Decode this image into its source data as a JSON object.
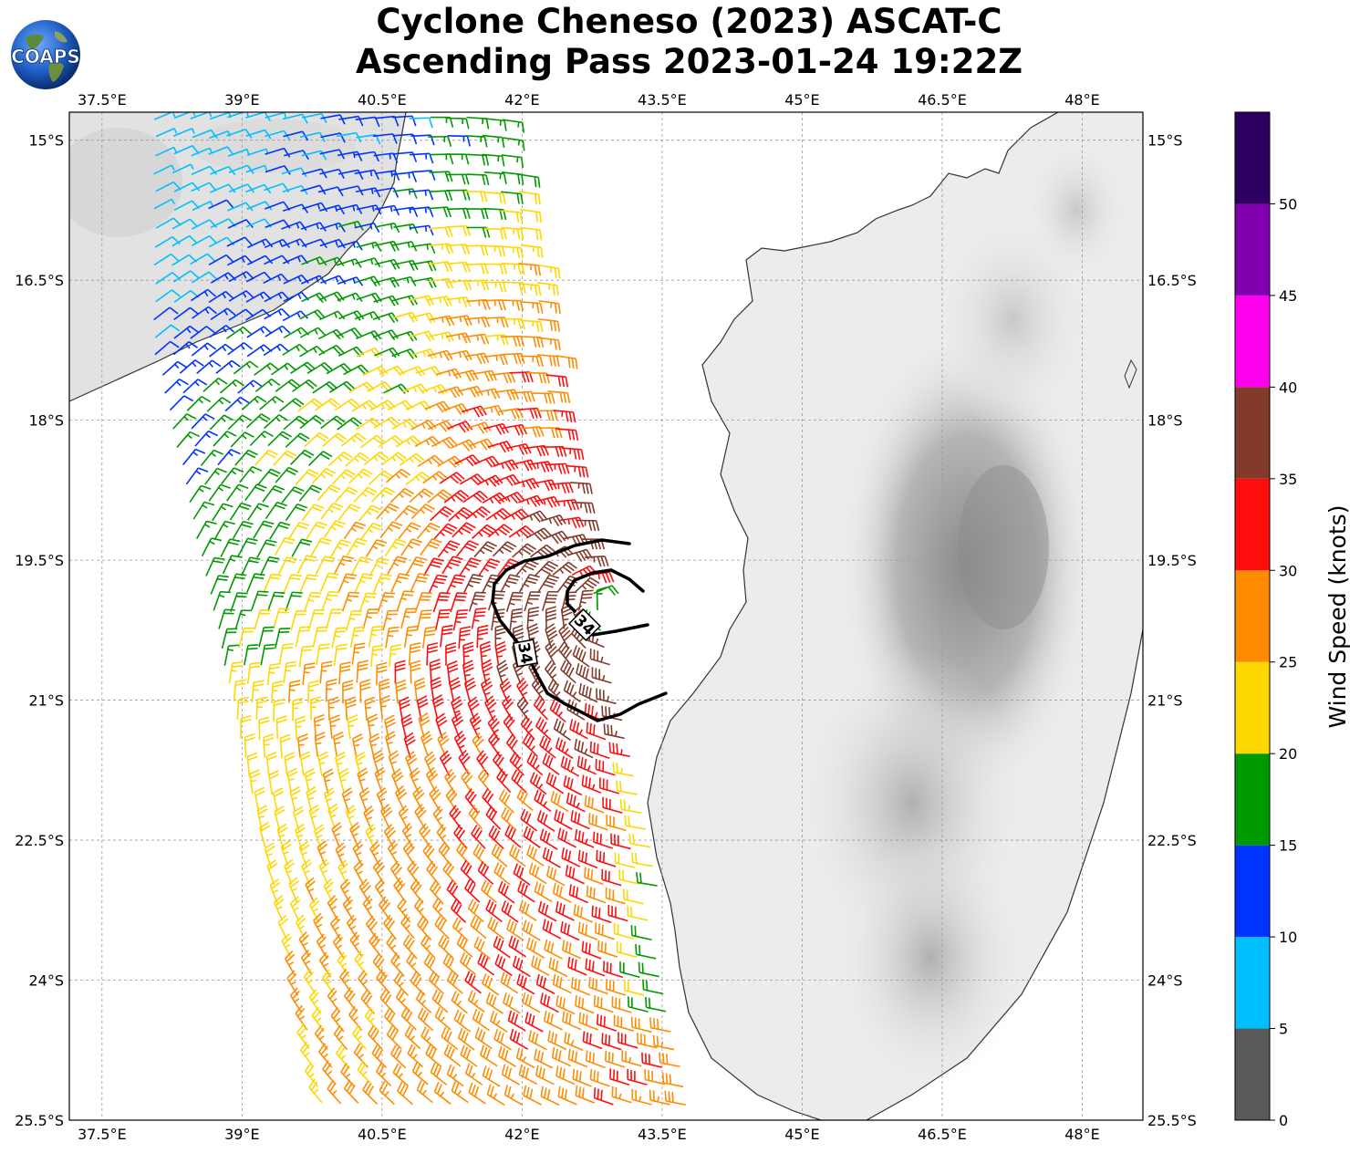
{
  "title": {
    "line1": "Cyclone Cheneso (2023) ASCAT-C",
    "line2": "Ascending Pass 2023-01-24 19:22Z"
  },
  "logo": {
    "text": "COAPS"
  },
  "map": {
    "lon_range": [
      37.15,
      48.65
    ],
    "lat_range": [
      -25.5,
      -14.7
    ],
    "lon_ticks": [
      "37.5°E",
      "39°E",
      "40.5°E",
      "42°E",
      "43.5°E",
      "45°E",
      "46.5°E",
      "48°E"
    ],
    "lat_ticks": [
      "15°S",
      "16.5°S",
      "18°S",
      "19.5°S",
      "21°S",
      "22.5°S",
      "24°S",
      "25.5°S"
    ],
    "grid": true,
    "storm_center": [
      42.9,
      -20.0
    ],
    "contour_label": "34",
    "contour_labels": [
      "34",
      "34"
    ]
  },
  "colorbar": {
    "label": "Wind Speed (knots)",
    "ticks": [
      "0",
      "5",
      "10",
      "15",
      "20",
      "25",
      "30",
      "35",
      "40",
      "45",
      "50"
    ],
    "bins": [
      {
        "min": 0,
        "max": 5,
        "color": "#595959"
      },
      {
        "min": 5,
        "max": 10,
        "color": "#00bfff"
      },
      {
        "min": 10,
        "max": 15,
        "color": "#0033ff"
      },
      {
        "min": 15,
        "max": 20,
        "color": "#009900"
      },
      {
        "min": 20,
        "max": 25,
        "color": "#ffd700"
      },
      {
        "min": 25,
        "max": 30,
        "color": "#ff8c00"
      },
      {
        "min": 30,
        "max": 35,
        "color": "#ff0d0d"
      },
      {
        "min": 35,
        "max": 40,
        "color": "#833a2a"
      },
      {
        "min": 40,
        "max": 45,
        "color": "#ff00ee"
      },
      {
        "min": 45,
        "max": 50,
        "color": "#8000b0"
      },
      {
        "min": 50,
        "max": 55,
        "color": "#2d0060"
      }
    ]
  }
}
